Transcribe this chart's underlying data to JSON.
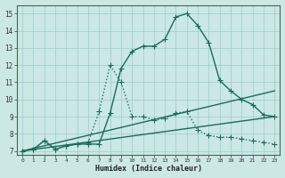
{
  "title": "",
  "xlabel": "Humidex (Indice chaleur)",
  "bg_color": "#cce8e4",
  "grid_color": "#99cccc",
  "line_color": "#1a6b5a",
  "xlim": [
    -0.5,
    23.5
  ],
  "ylim": [
    6.8,
    15.5
  ],
  "xticks": [
    0,
    1,
    2,
    3,
    4,
    5,
    6,
    7,
    8,
    9,
    10,
    11,
    12,
    13,
    14,
    15,
    16,
    17,
    18,
    19,
    20,
    21,
    22,
    23
  ],
  "yticks": [
    7,
    8,
    9,
    10,
    11,
    12,
    13,
    14,
    15
  ],
  "series": [
    {
      "x": [
        0,
        1,
        2,
        3,
        4,
        5,
        6,
        7,
        8,
        9,
        10,
        11,
        12,
        13,
        14,
        15,
        16,
        17,
        18,
        19,
        20,
        21,
        22,
        23
      ],
      "y": [
        7.0,
        7.1,
        7.6,
        7.1,
        7.3,
        7.4,
        7.4,
        7.4,
        9.2,
        11.8,
        12.8,
        13.1,
        13.1,
        13.5,
        14.8,
        15.0,
        14.3,
        13.3,
        11.1,
        10.5,
        10.0,
        9.7,
        9.1,
        9.0
      ],
      "marker": "+",
      "lw": 1.0,
      "ms": 4,
      "dotted": false
    },
    {
      "x": [
        0,
        1,
        2,
        3,
        4,
        5,
        6,
        7,
        8,
        9,
        10,
        11,
        12,
        13,
        14,
        15,
        16,
        17,
        18,
        19,
        20,
        21,
        22,
        23
      ],
      "y": [
        7.0,
        7.1,
        7.6,
        7.1,
        7.3,
        7.4,
        7.5,
        9.3,
        12.0,
        11.0,
        9.0,
        9.0,
        8.8,
        8.9,
        9.2,
        9.3,
        8.2,
        7.9,
        7.8,
        7.8,
        7.7,
        7.6,
        7.5,
        7.4
      ],
      "marker": "+",
      "lw": 1.0,
      "ms": 4,
      "dotted": true
    },
    {
      "x": [
        0,
        23
      ],
      "y": [
        7.0,
        10.5
      ],
      "marker": null,
      "lw": 1.0,
      "ms": 0,
      "dotted": false
    },
    {
      "x": [
        0,
        23
      ],
      "y": [
        7.0,
        9.0
      ],
      "marker": null,
      "lw": 1.0,
      "ms": 0,
      "dotted": false
    }
  ]
}
